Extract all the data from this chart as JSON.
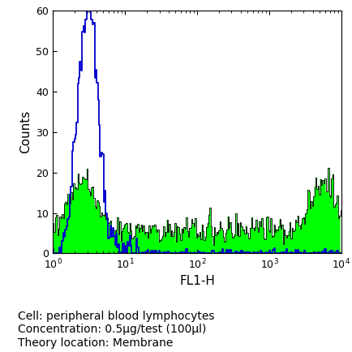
{
  "title": "",
  "xlabel": "FL1-H",
  "ylabel": "Counts",
  "xlim_log": [
    0,
    4
  ],
  "ylim": [
    0,
    60
  ],
  "yticks": [
    0,
    10,
    20,
    30,
    40,
    50,
    60
  ],
  "annotation_lines": [
    "Cell: peripheral blood lymphocytes",
    "Concentration: 0.5μg/test (100μl)",
    "Theory location: Membrane"
  ],
  "green_fill_color": "#00ff00",
  "green_edge_color": "#000000",
  "blue_line_color": "#0000cc",
  "background_color": "#ffffff",
  "annotation_fontsize": 10,
  "axis_label_fontsize": 11,
  "n_bins": 256
}
